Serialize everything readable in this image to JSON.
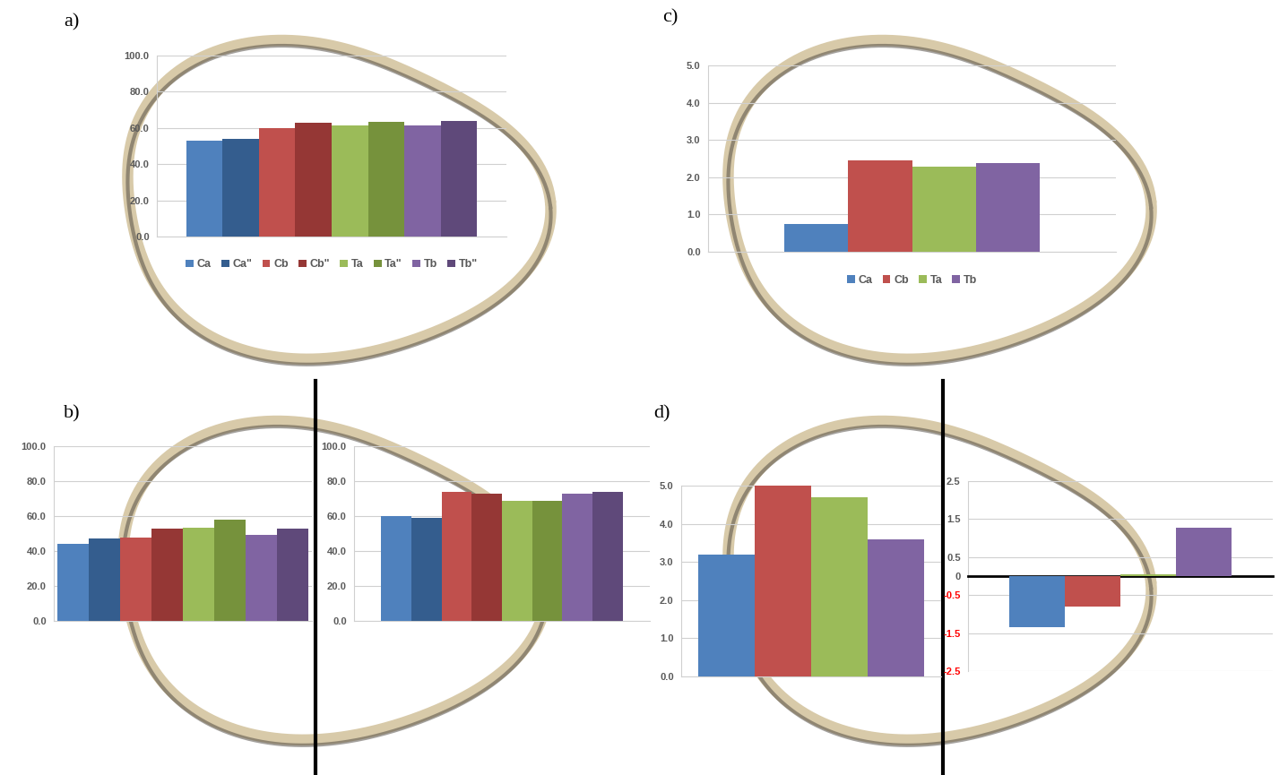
{
  "chart_data": [
    {
      "type": "bar",
      "title": "a)",
      "categories": [
        "Ca",
        "Ca\"",
        "Cb",
        "Cb\"",
        "Ta",
        "Ta\"",
        "Tb",
        "Tb\""
      ],
      "values": [
        53,
        54,
        60,
        63,
        61.5,
        63.5,
        61.5,
        64
      ],
      "colors": [
        "#4f81bd",
        "#345d8e",
        "#c0504d",
        "#953735",
        "#9bbb59",
        "#76923c",
        "#8064a2",
        "#5f497a"
      ],
      "ylim": [
        0,
        100
      ],
      "yticks": [
        {
          "value": 0,
          "label": "0.0"
        },
        {
          "value": 20,
          "label": "20.0"
        },
        {
          "value": 40,
          "label": "40.0"
        },
        {
          "value": 60,
          "label": "60.0"
        },
        {
          "value": 80,
          "label": "80.0"
        },
        {
          "value": 100,
          "label": "100.0"
        }
      ],
      "grid": true,
      "legend": "bottom",
      "tick_labels": "y"
    },
    {
      "type": "bar",
      "title": "b)",
      "categories": [
        null,
        null,
        null,
        null,
        null,
        null,
        null,
        null
      ],
      "values": [
        44,
        47,
        47.5,
        53,
        53.5,
        58,
        49,
        53
      ],
      "colors": [
        "#4f81bd",
        "#345d8e",
        "#c0504d",
        "#953735",
        "#9bbb59",
        "#76923c",
        "#8064a2",
        "#5f497a"
      ],
      "ylim": [
        0,
        100
      ],
      "yticks": [
        {
          "value": 0,
          "label": "0.0"
        },
        {
          "value": 20,
          "label": "20.0"
        },
        {
          "value": 40,
          "label": "40.0"
        },
        {
          "value": 60,
          "label": "60.0"
        },
        {
          "value": 80,
          "label": "80.0"
        },
        {
          "value": 100,
          "label": "100.0"
        }
      ],
      "grid": true,
      "tick_labels": "y"
    },
    {
      "type": "bar",
      "categories": [
        null,
        null,
        null,
        null,
        null,
        null,
        null,
        null
      ],
      "values": [
        60,
        59,
        74,
        73,
        68.5,
        68.5,
        73,
        74
      ],
      "colors": [
        "#4f81bd",
        "#345d8e",
        "#c0504d",
        "#953735",
        "#9bbb59",
        "#76923c",
        "#8064a2",
        "#5f497a"
      ],
      "ylim": [
        0,
        100
      ],
      "yticks": [
        {
          "value": 0,
          "label": "0.0"
        },
        {
          "value": 20,
          "label": "20.0"
        },
        {
          "value": 40,
          "label": "40.0"
        },
        {
          "value": 60,
          "label": "60.0"
        },
        {
          "value": 80,
          "label": "80.0"
        },
        {
          "value": 100,
          "label": "100.0"
        }
      ],
      "grid": true,
      "tick_labels": "y"
    },
    {
      "type": "bar",
      "title": "c)",
      "categories": [
        "Ca",
        "Cb",
        "Ta",
        "Tb"
      ],
      "values": [
        0.75,
        2.45,
        2.28,
        2.38
      ],
      "colors": [
        "#4f81bd",
        "#c0504d",
        "#9bbb59",
        "#8064a2"
      ],
      "ylim": [
        0,
        5
      ],
      "yticks": [
        {
          "value": 0,
          "label": "0.0"
        },
        {
          "value": 1,
          "label": "1.0"
        },
        {
          "value": 2,
          "label": "2.0"
        },
        {
          "value": 3,
          "label": "3.0"
        },
        {
          "value": 4,
          "label": "4.0"
        },
        {
          "value": 5,
          "label": "5.0"
        }
      ],
      "grid": true,
      "legend": "bottom",
      "tick_labels": "y"
    },
    {
      "type": "bar",
      "title": "d)",
      "categories": [
        null,
        null,
        null,
        null
      ],
      "values": [
        3.2,
        5.0,
        4.7,
        3.6
      ],
      "colors": [
        "#4f81bd",
        "#c0504d",
        "#9bbb59",
        "#8064a2"
      ],
      "ylim": [
        0,
        5
      ],
      "yticks": [
        {
          "value": 0,
          "label": "0.0"
        },
        {
          "value": 1,
          "label": "1.0"
        },
        {
          "value": 2,
          "label": "2.0"
        },
        {
          "value": 3,
          "label": "3.0"
        },
        {
          "value": 4,
          "label": "4.0"
        },
        {
          "value": 5,
          "label": "5.0"
        }
      ],
      "grid": true,
      "tick_labels": "y"
    },
    {
      "type": "bar",
      "categories": [
        null,
        null,
        null,
        null
      ],
      "values": [
        -1.35,
        -0.8,
        0.04,
        1.27
      ],
      "colors": [
        "#4f81bd",
        "#c0504d",
        "#9bbb59",
        "#8064a2"
      ],
      "ylim": [
        -2.5,
        2.5
      ],
      "yticks": [
        -2.5,
        -1.5,
        -0.5,
        0,
        0.5,
        1.5,
        2.5
      ],
      "grid": true,
      "tick_labels": "y"
    }
  ]
}
